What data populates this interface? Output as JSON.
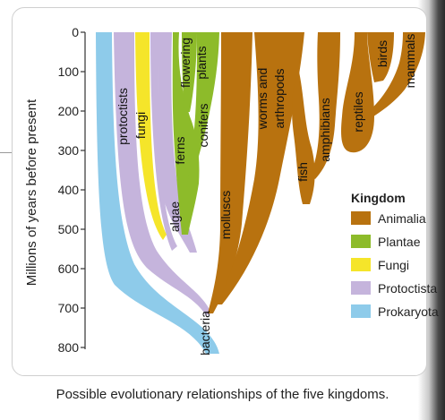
{
  "axis": {
    "label": "Millions of years before present",
    "ticks": [
      "0",
      "100",
      "200",
      "300",
      "400",
      "500",
      "600",
      "700",
      "800"
    ]
  },
  "taxa": {
    "bacteria": "bacteria",
    "protoctists": "protoctists",
    "fungi": "fungi",
    "algae": "algae",
    "ferns": "ferns",
    "flowering": "flowering",
    "plants": "plants",
    "conifers": "conifers",
    "molluscs": "molluscs",
    "worms_and": "worms and",
    "arthropods": "arthropods",
    "fish": "fish",
    "amphibians": "amphibians",
    "reptiles": "reptiles",
    "birds": "birds",
    "mammals": "mammals"
  },
  "legend": {
    "title": "Kingdom",
    "items": [
      {
        "label": "Animalia",
        "color": "#b8720f"
      },
      {
        "label": "Plantae",
        "color": "#8dbb2a"
      },
      {
        "label": "Fungi",
        "color": "#f5e52a"
      },
      {
        "label": "Protoctista",
        "color": "#c5b4dc"
      },
      {
        "label": "Prokaryota",
        "color": "#8ecbea"
      }
    ]
  },
  "caption": "Possible evolutionary relationships of the five kingdoms."
}
